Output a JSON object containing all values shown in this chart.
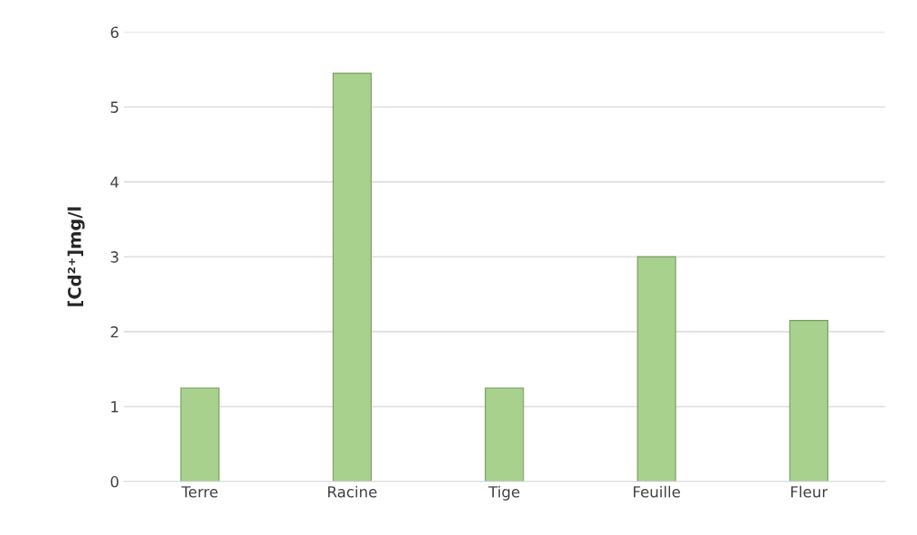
{
  "chart_data": {
    "type": "bar",
    "ylabel": "[Cd²⁺]mg/l",
    "categories": [
      "Terre",
      "Racine",
      "Tige",
      "Feuille",
      "Fleur"
    ],
    "values": [
      1.25,
      5.45,
      1.25,
      3.0,
      2.15
    ],
    "color": "#a9d18e",
    "ylim": [
      0,
      6
    ],
    "yticks": [
      0,
      1,
      2,
      3,
      4,
      5,
      6
    ],
    "grid": "y",
    "legend": false
  }
}
